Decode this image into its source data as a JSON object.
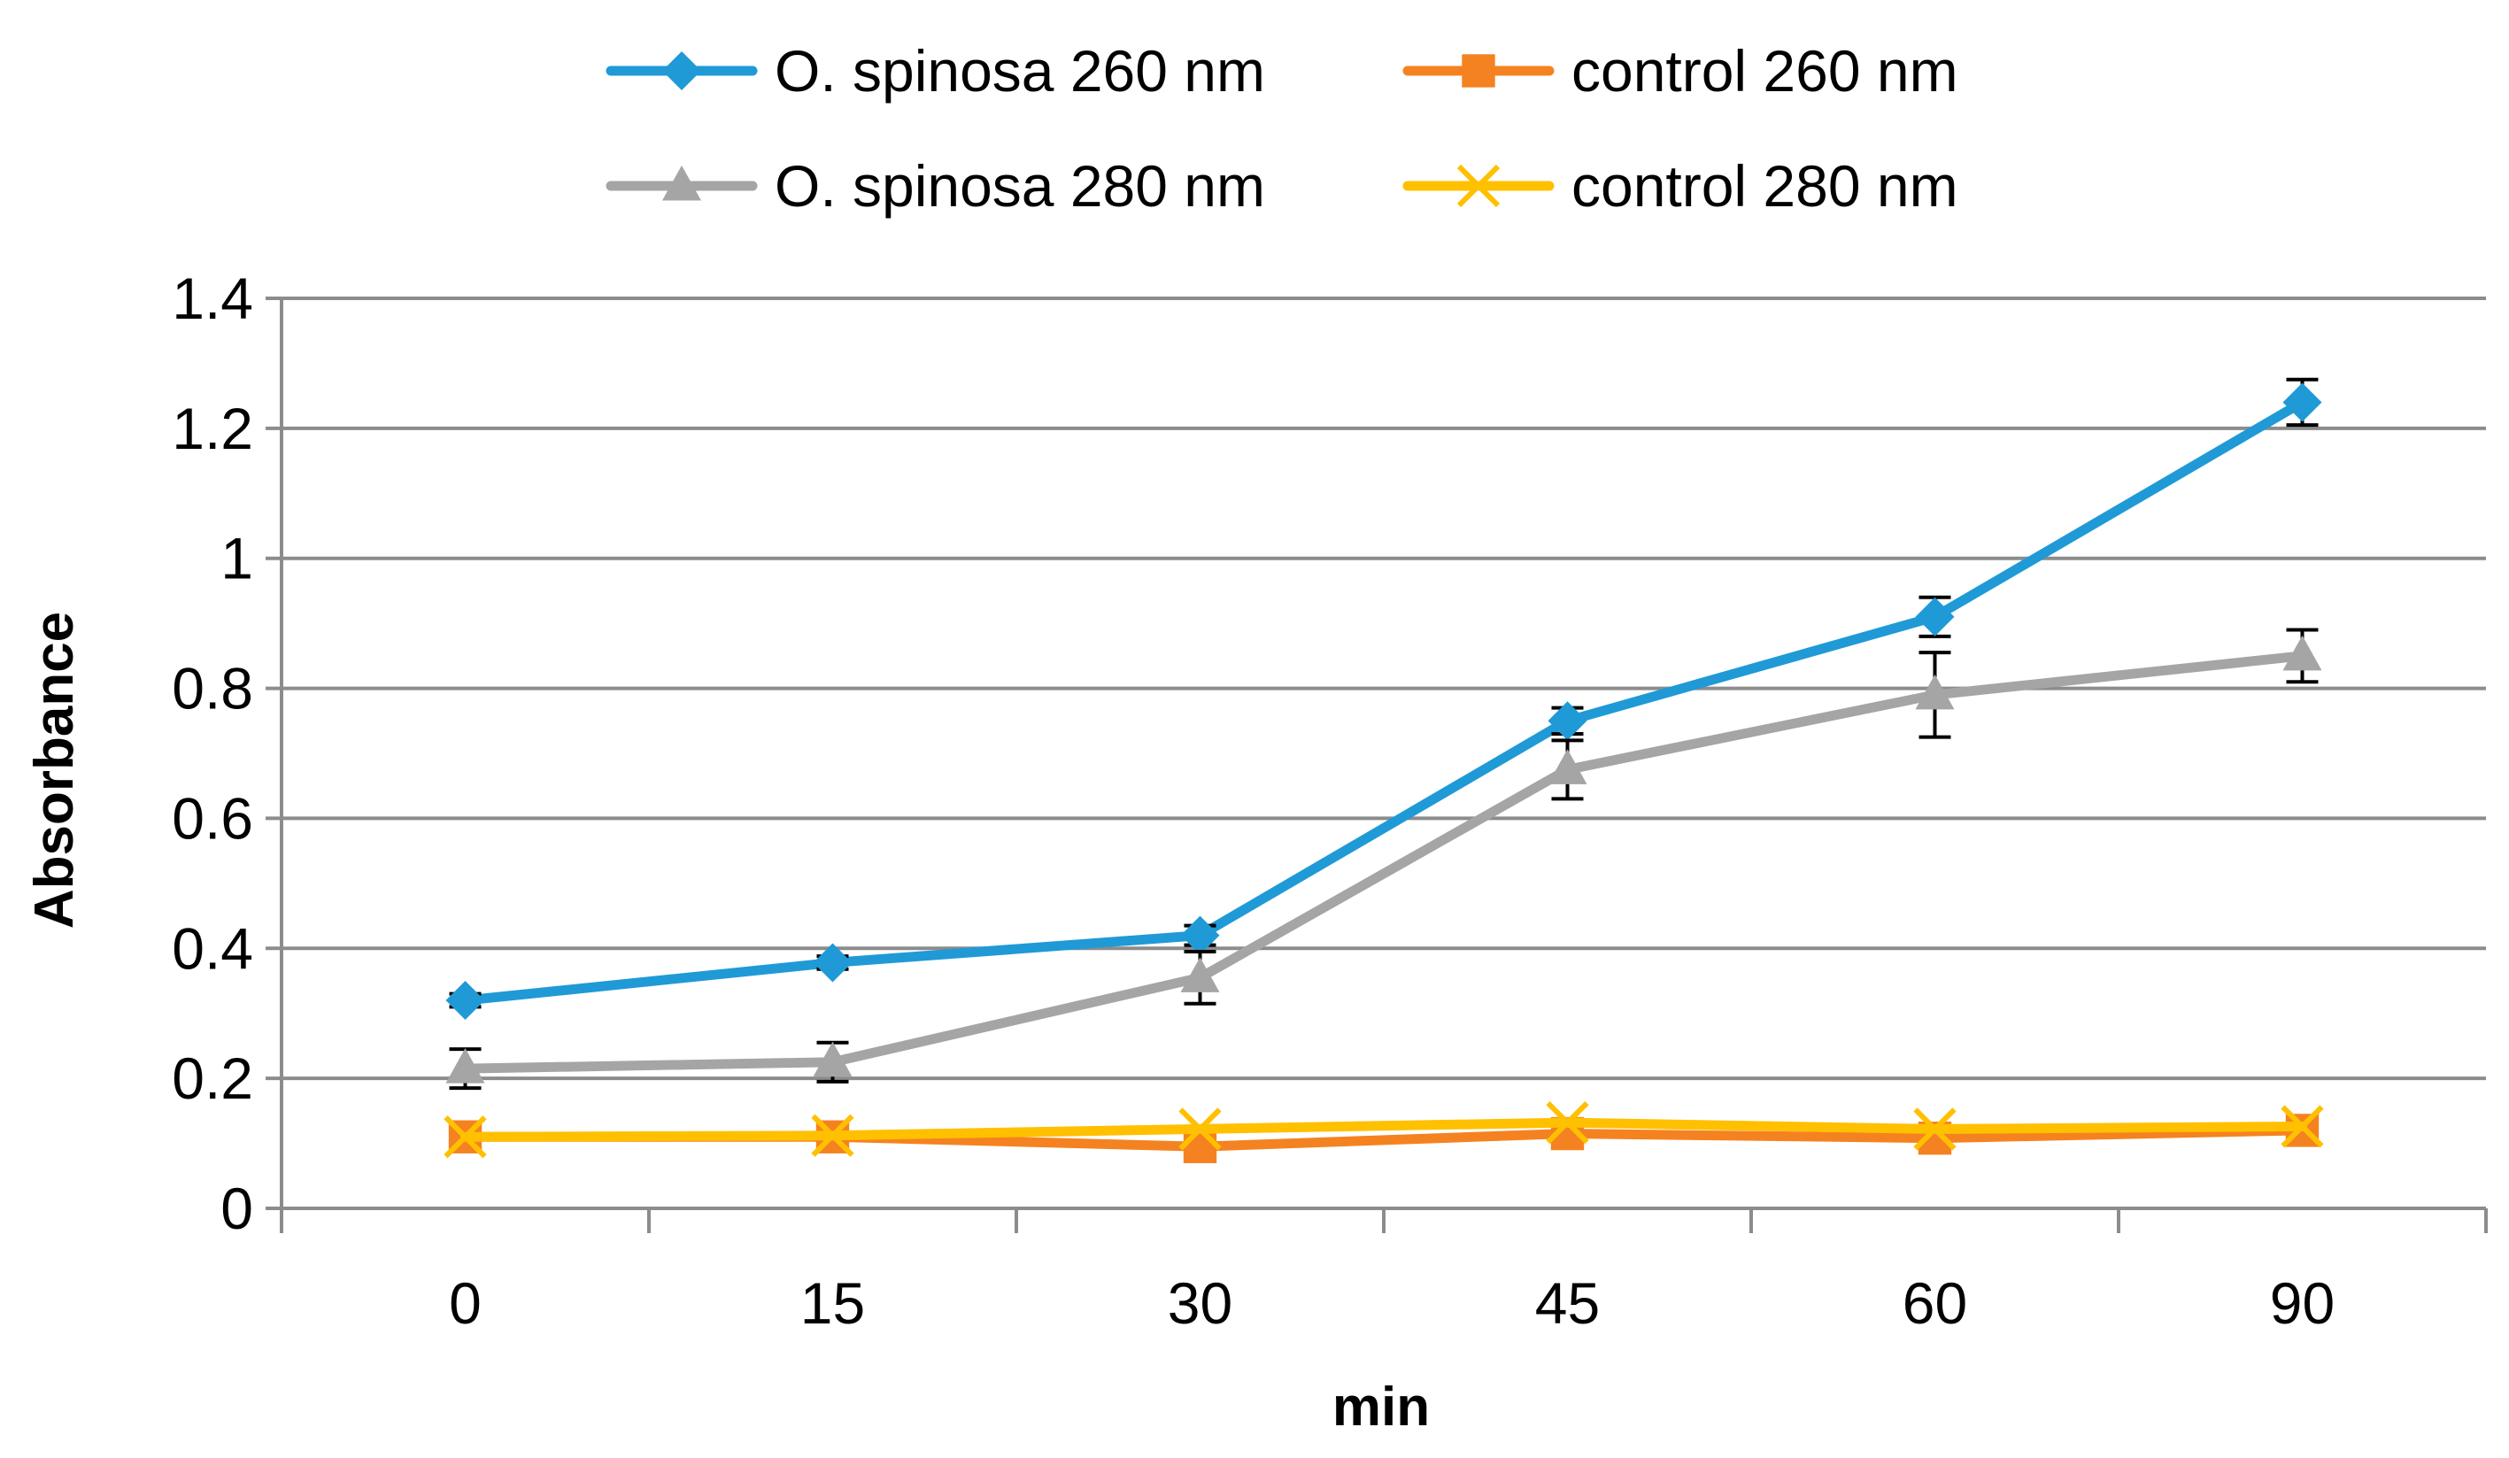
{
  "chart_data": {
    "type": "line",
    "title": "",
    "xlabel": "min",
    "ylabel": "Absorbance",
    "categories": [
      "0",
      "15",
      "30",
      "45",
      "60",
      "90"
    ],
    "ylim": [
      0,
      1.4
    ],
    "yticks": [
      "0",
      "0.2",
      "0.4",
      "0.6",
      "0.8",
      "1",
      "1.2",
      "1.4"
    ],
    "grid": true,
    "legend_position": "top",
    "series": [
      {
        "name": "O. spinosa 260 nm",
        "color": "#1F9AD6",
        "marker": "diamond",
        "values": [
          0.32,
          0.378,
          0.42,
          0.75,
          0.91,
          1.24
        ],
        "errors": [
          0.01,
          0.01,
          0.015,
          0.02,
          0.03,
          0.035
        ]
      },
      {
        "name": "control 260 nm",
        "color": "#F58220",
        "marker": "square",
        "values": [
          0.11,
          0.11,
          0.095,
          0.115,
          0.108,
          0.12
        ],
        "errors": [
          0,
          0,
          0,
          0,
          0,
          0
        ]
      },
      {
        "name": "O. spinosa 280 nm",
        "color": "#A5A5A5",
        "marker": "triangle",
        "values": [
          0.215,
          0.225,
          0.355,
          0.675,
          0.79,
          0.85
        ],
        "errors": [
          0.03,
          0.03,
          0.04,
          0.045,
          0.065,
          0.04
        ]
      },
      {
        "name": "control 280 nm",
        "color": "#FFC000",
        "marker": "x",
        "values": [
          0.11,
          0.112,
          0.122,
          0.132,
          0.122,
          0.126
        ],
        "errors": [
          0,
          0,
          0,
          0,
          0,
          0
        ]
      }
    ]
  }
}
